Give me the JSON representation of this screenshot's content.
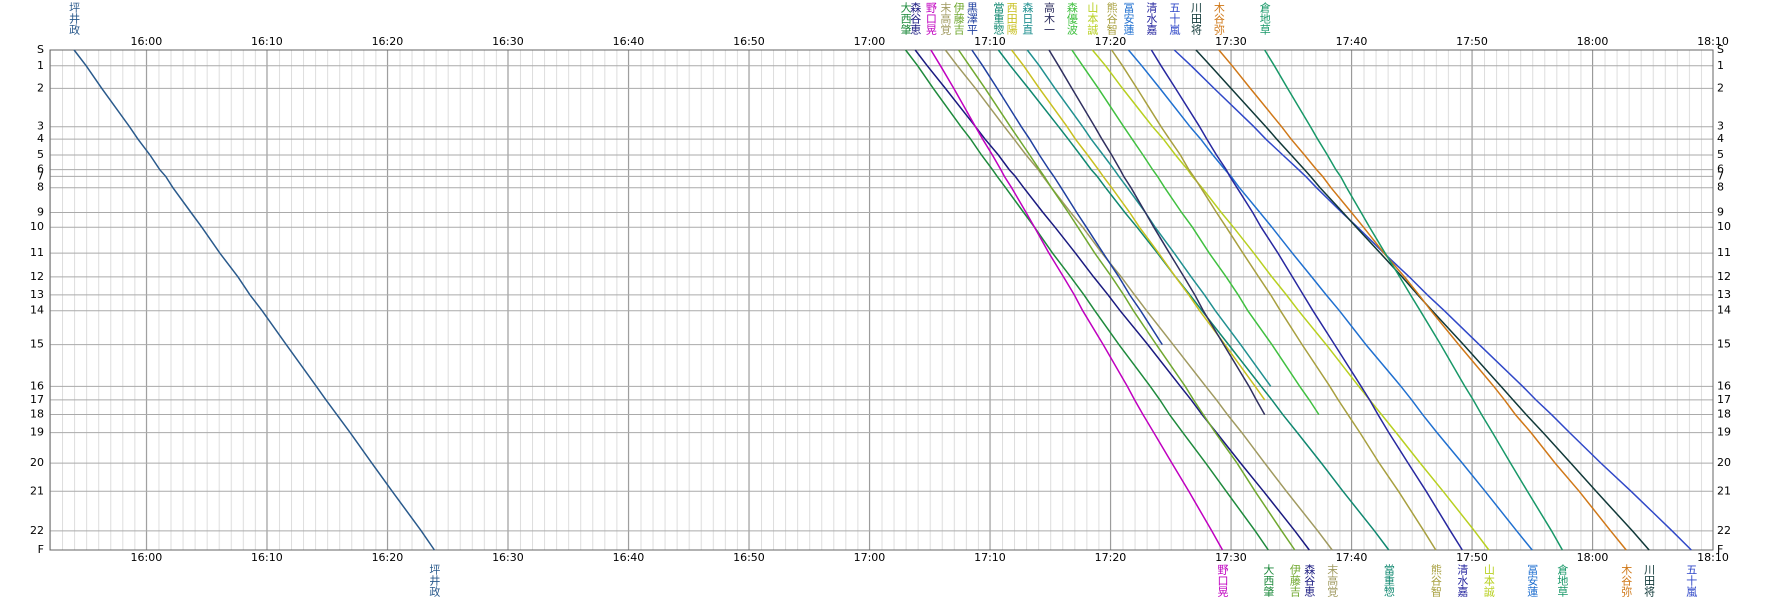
{
  "chart_data": {
    "type": "line",
    "xlim": [
      952,
      1090
    ],
    "xticks": [
      {
        "value": 960,
        "label": "16:00"
      },
      {
        "value": 970,
        "label": "16:10"
      },
      {
        "value": 980,
        "label": "16:20"
      },
      {
        "value": 990,
        "label": "16:30"
      },
      {
        "value": 1000,
        "label": "16:40"
      },
      {
        "value": 1010,
        "label": "16:50"
      },
      {
        "value": 1020,
        "label": "17:00"
      },
      {
        "value": 1030,
        "label": "17:10"
      },
      {
        "value": 1040,
        "label": "17:20"
      },
      {
        "value": 1050,
        "label": "17:30"
      },
      {
        "value": 1060,
        "label": "17:40"
      },
      {
        "value": 1070,
        "label": "17:50"
      },
      {
        "value": 1080,
        "label": "18:00"
      },
      {
        "value": 1090,
        "label": "18:10"
      }
    ],
    "ylim": [
      0,
      443
    ],
    "yticks": [
      {
        "value": 0,
        "label": "S"
      },
      14,
      34,
      68,
      79,
      93,
      106,
      112,
      122,
      144,
      157,
      180,
      201,
      217,
      231,
      261,
      298,
      310,
      323,
      339,
      366,
      391,
      426,
      {
        "value": 443,
        "label": "F"
      }
    ],
    "ytick_labels": [
      "S",
      "1",
      "2",
      "3",
      "4",
      "5",
      "6",
      "7",
      "8",
      "9",
      "10",
      "11",
      "12",
      "13",
      "14",
      "15",
      "16",
      "17",
      "18",
      "19",
      "20",
      "21",
      "22",
      "F"
    ],
    "grid": true,
    "series": [
      {
        "name": "坪井政",
        "color": "#2a5a8c",
        "x": [
          954.0,
          955.0,
          956.3,
          958.6,
          959.3,
          960.3,
          961.1,
          961.6,
          962.2,
          963.7,
          964.6,
          966.1,
          967.6,
          968.6,
          969.6,
          971.6,
          974.1,
          974.9,
          975.8,
          976.9,
          978.7,
          980.4,
          982.8,
          983.9
        ]
      },
      {
        "name": "大西肇",
        "color": "#1e8a3c",
        "x": [
          1023.0,
          1024.0,
          1025.3,
          1027.6,
          1028.4,
          1029.3,
          1030.2,
          1030.6,
          1031.3,
          1032.8,
          1033.7,
          1035.2,
          1036.7,
          1037.8,
          1038.7,
          1040.7,
          1043.3,
          1044.1,
          1044.9,
          1046.0,
          1047.9,
          1049.6,
          1052.0,
          1053.1
        ]
      },
      {
        "name": "森谷恵",
        "color": "#1a1a80",
        "x": [
          1023.8,
          1024.8,
          1026.3,
          1028.8,
          1029.6,
          1030.7,
          1031.6,
          1032.1,
          1032.8,
          1034.4,
          1035.4,
          1037.1,
          1038.6,
          1039.8,
          1040.8,
          1043.1,
          1045.8,
          1046.7,
          1047.6,
          1048.8,
          1050.8,
          1052.7,
          1055.3,
          1056.5
        ]
      },
      {
        "name": "野口晃",
        "color": "#c000c0",
        "x": [
          1025.1,
          1025.9,
          1027.0,
          1028.8,
          1029.4,
          1030.2,
          1030.9,
          1031.2,
          1031.8,
          1033.0,
          1033.7,
          1034.9,
          1036.1,
          1037.0,
          1037.7,
          1039.4,
          1041.4,
          1042.0,
          1042.7,
          1043.6,
          1045.1,
          1046.5,
          1048.4,
          1049.3
        ]
      },
      {
        "name": "末高覚",
        "color": "#a09a60",
        "x": [
          1026.3,
          1027.3,
          1028.8,
          1031.2,
          1032.0,
          1033.0,
          1034.0,
          1034.4,
          1035.1,
          1036.7,
          1037.7,
          1039.3,
          1040.9,
          1042.0,
          1043.0,
          1045.2,
          1047.9,
          1048.8,
          1049.7,
          1050.9,
          1052.8,
          1054.6,
          1057.2,
          1058.4
        ]
      },
      {
        "name": "伊藤吉",
        "color": "#70a830",
        "x": [
          1027.4,
          1028.3,
          1029.6,
          1031.7,
          1032.4,
          1033.3,
          1034.1,
          1034.5,
          1035.1,
          1036.5,
          1037.3,
          1038.7,
          1040.1,
          1041.1,
          1041.9,
          1043.8,
          1046.2,
          1046.9,
          1047.7,
          1048.7,
          1050.5,
          1052.0,
          1054.2,
          1055.3
        ]
      },
      {
        "name": "黒澤平",
        "color": "#2040a0",
        "x": [
          1028.5,
          1029.4,
          1030.6,
          1032.6,
          1033.3,
          1034.1,
          1034.9,
          1035.3,
          1035.9,
          1037.2,
          1038.0,
          1039.4,
          1040.7,
          1041.6,
          1042.5,
          1044.3
        ]
      },
      {
        "name": "當重惣",
        "color": "#108870",
        "x": [
          1030.7,
          1031.7,
          1033.2,
          1035.7,
          1036.5,
          1037.5,
          1038.4,
          1038.9,
          1039.6,
          1041.2,
          1042.2,
          1043.9,
          1045.4,
          1046.6,
          1047.6,
          1049.8,
          1052.5,
          1053.4,
          1054.3,
          1055.5,
          1057.5,
          1059.3,
          1061.9,
          1063.1
        ]
      },
      {
        "name": "西田陽",
        "color": "#c8c020",
        "x": [
          1031.8,
          1032.8,
          1034.1,
          1036.4,
          1037.1,
          1038.1,
          1039.0,
          1039.4,
          1040.1,
          1041.6,
          1042.4,
          1044.0,
          1045.4,
          1046.5,
          1047.4,
          1049.5,
          1052.0,
          1052.8
        ]
      },
      {
        "name": "森日直",
        "color": "#209090",
        "x": [
          1033.1,
          1034.1,
          1035.4,
          1037.7,
          1038.4,
          1039.4,
          1040.3,
          1040.7,
          1041.4,
          1042.9,
          1043.7,
          1045.3,
          1046.7,
          1047.8,
          1048.7,
          1050.8,
          1053.3
        ]
      },
      {
        "name": "高木一",
        "color": "#303060",
        "x": [
          1034.9,
          1035.7,
          1036.8,
          1038.7,
          1039.3,
          1040.1,
          1040.8,
          1041.1,
          1041.7,
          1042.9,
          1043.6,
          1044.9,
          1046.1,
          1047.0,
          1047.7,
          1049.4,
          1051.5,
          1052.1,
          1052.8
        ]
      },
      {
        "name": "森優波",
        "color": "#40c040",
        "x": [
          1036.8,
          1037.7,
          1039.0,
          1041.1,
          1041.8,
          1042.7,
          1043.5,
          1043.9,
          1044.5,
          1045.9,
          1046.8,
          1048.2,
          1049.6,
          1050.6,
          1051.4,
          1053.4,
          1055.7,
          1056.5,
          1057.3
        ]
      },
      {
        "name": "山本誠",
        "color": "#b8d020",
        "x": [
          1038.5,
          1039.6,
          1041.0,
          1043.5,
          1044.4,
          1045.4,
          1046.4,
          1046.8,
          1047.6,
          1049.2,
          1050.2,
          1051.9,
          1053.4,
          1054.6,
          1055.6,
          1057.9,
          1060.6,
          1061.5,
          1062.5,
          1063.7,
          1065.7,
          1067.6,
          1070.2,
          1071.4
        ]
      },
      {
        "name": "熊谷智",
        "color": "#a8a040",
        "x": [
          1040.1,
          1041.0,
          1042.2,
          1044.2,
          1044.9,
          1045.8,
          1046.5,
          1046.9,
          1047.5,
          1048.8,
          1049.6,
          1051.0,
          1052.3,
          1053.3,
          1054.1,
          1055.9,
          1058.2,
          1058.9,
          1059.7,
          1060.7,
          1062.3,
          1063.9,
          1066.0,
          1067.0
        ]
      },
      {
        "name": "冨安蓮",
        "color": "#2070d0",
        "x": [
          1041.5,
          1042.6,
          1044.1,
          1046.6,
          1047.5,
          1048.5,
          1049.5,
          1050.0,
          1050.7,
          1052.4,
          1053.4,
          1055.1,
          1056.7,
          1057.9,
          1059.0,
          1061.2,
          1064.1,
          1065.0,
          1065.9,
          1067.1,
          1069.2,
          1071.1,
          1073.7,
          1075.0
        ]
      },
      {
        "name": "清水嘉",
        "color": "#2828a0",
        "x": [
          1043.4,
          1044.2,
          1045.4,
          1047.4,
          1048.0,
          1048.8,
          1049.6,
          1049.9,
          1050.5,
          1051.8,
          1052.5,
          1053.9,
          1055.1,
          1056.0,
          1056.8,
          1058.6,
          1060.8,
          1061.5,
          1062.2,
          1063.1,
          1064.7,
          1066.2,
          1068.2,
          1069.2
        ]
      },
      {
        "name": "五十嵐",
        "color": "#3048c8",
        "x": [
          1045.3,
          1046.7,
          1048.6,
          1051.9,
          1052.9,
          1054.3,
          1055.6,
          1056.2,
          1057.1,
          1059.2,
          1060.5,
          1062.7,
          1064.8,
          1066.3,
          1067.7,
          1070.6,
          1074.2,
          1075.3,
          1076.6,
          1078.1,
          1080.7,
          1083.2,
          1086.6,
          1088.2
        ]
      },
      {
        "name": "川田将",
        "color": "#103838",
        "x": [
          1047.1,
          1048.3,
          1050.0,
          1052.9,
          1053.8,
          1055.0,
          1056.1,
          1056.6,
          1057.4,
          1059.3,
          1060.4,
          1062.4,
          1064.2,
          1065.5,
          1066.7,
          1069.3,
          1072.4,
          1073.4,
          1074.5,
          1075.9,
          1078.2,
          1080.3,
          1083.3,
          1084.7
        ]
      },
      {
        "name": "木谷弥",
        "color": "#d07818",
        "x": [
          1049.0,
          1050.1,
          1051.6,
          1054.2,
          1055.0,
          1056.1,
          1057.1,
          1057.6,
          1058.3,
          1060.0,
          1061.0,
          1062.7,
          1064.4,
          1065.6,
          1066.6,
          1068.9,
          1071.8,
          1072.7,
          1073.6,
          1074.9,
          1076.9,
          1078.9,
          1081.5,
          1082.8
        ]
      },
      {
        "name": "倉地草",
        "color": "#189868",
        "x": [
          1052.8,
          1053.6,
          1054.7,
          1056.6,
          1057.2,
          1058.0,
          1058.7,
          1059.1,
          1059.6,
          1060.8,
          1061.5,
          1062.8,
          1064.0,
          1064.9,
          1065.7,
          1067.4,
          1069.4,
          1070.1,
          1070.8,
          1071.7,
          1073.2,
          1074.6,
          1076.6,
          1077.5
        ]
      }
    ]
  }
}
